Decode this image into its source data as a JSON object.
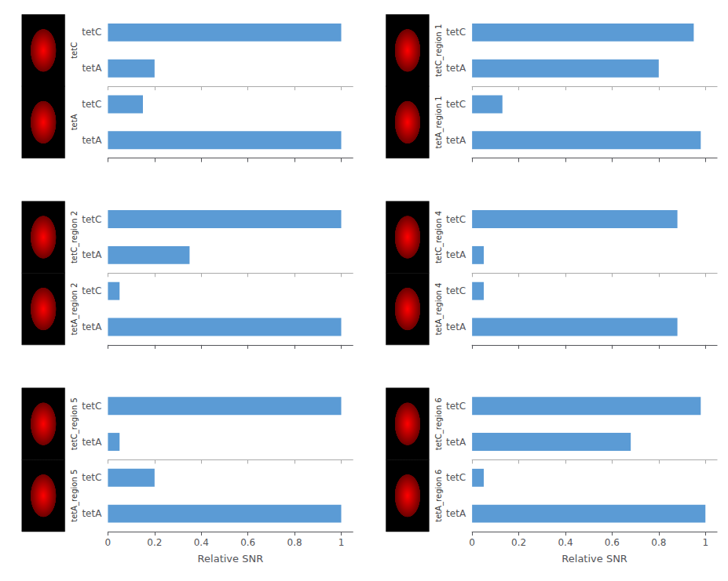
{
  "chart_data": [
    {
      "type": "bar",
      "orientation": "horizontal",
      "title": "tetC",
      "categories": [
        "tetA",
        "tetC"
      ],
      "values": [
        0.2,
        1.0
      ],
      "color": "#5B9BD5",
      "xlim": [
        0,
        1.05
      ],
      "xticks": [
        0,
        0.2,
        0.4,
        0.6,
        0.8,
        1
      ],
      "grid": false,
      "tick_labels": "y"
    },
    {
      "type": "bar",
      "orientation": "horizontal",
      "title": "tetA",
      "categories": [
        "tetA",
        "tetC"
      ],
      "values": [
        1.0,
        0.15
      ],
      "color": "#5B9BD5",
      "xlim": [
        0,
        1.05
      ],
      "xticks": [
        0,
        0.2,
        0.4,
        0.6,
        0.8,
        1
      ],
      "grid": false,
      "tick_labels": "y"
    },
    {
      "type": "bar",
      "orientation": "horizontal",
      "title": "tetC_region 1",
      "categories": [
        "tetA",
        "tetC"
      ],
      "values": [
        0.8,
        0.95
      ],
      "color": "#5B9BD5",
      "xlim": [
        0,
        1.05
      ],
      "xticks": [
        0,
        0.2,
        0.4,
        0.6,
        0.8,
        1
      ],
      "grid": false,
      "tick_labels": "y"
    },
    {
      "type": "bar",
      "orientation": "horizontal",
      "title": "tetA_region 1",
      "categories": [
        "tetA",
        "tetC"
      ],
      "values": [
        0.98,
        0.13
      ],
      "color": "#5B9BD5",
      "xlim": [
        0,
        1.05
      ],
      "xticks": [
        0,
        0.2,
        0.4,
        0.6,
        0.8,
        1
      ],
      "grid": false,
      "tick_labels": "y"
    },
    {
      "type": "bar",
      "orientation": "horizontal",
      "title": "tetC_region 2",
      "categories": [
        "tetA",
        "tetC"
      ],
      "values": [
        0.35,
        1.0
      ],
      "color": "#5B9BD5",
      "xlim": [
        0,
        1.05
      ],
      "xticks": [
        0,
        0.2,
        0.4,
        0.6,
        0.8,
        1
      ],
      "grid": false,
      "tick_labels": "y"
    },
    {
      "type": "bar",
      "orientation": "horizontal",
      "title": "tetA_region 2",
      "categories": [
        "tetA",
        "tetC"
      ],
      "values": [
        1.0,
        0.05
      ],
      "color": "#5B9BD5",
      "xlim": [
        0,
        1.05
      ],
      "xticks": [
        0,
        0.2,
        0.4,
        0.6,
        0.8,
        1
      ],
      "grid": false,
      "tick_labels": "y"
    },
    {
      "type": "bar",
      "orientation": "horizontal",
      "title": "tetC_region 4",
      "categories": [
        "tetA",
        "tetC"
      ],
      "values": [
        0.05,
        0.88
      ],
      "color": "#5B9BD5",
      "xlim": [
        0,
        1.05
      ],
      "xticks": [
        0,
        0.2,
        0.4,
        0.6,
        0.8,
        1
      ],
      "grid": false,
      "tick_labels": "y"
    },
    {
      "type": "bar",
      "orientation": "horizontal",
      "title": "tetA_region 4",
      "categories": [
        "tetA",
        "tetC"
      ],
      "values": [
        0.88,
        0.05
      ],
      "color": "#5B9BD5",
      "xlim": [
        0,
        1.05
      ],
      "xticks": [
        0,
        0.2,
        0.4,
        0.6,
        0.8,
        1
      ],
      "grid": false,
      "tick_labels": "y"
    },
    {
      "type": "bar",
      "orientation": "horizontal",
      "title": "tetC_region 5",
      "categories": [
        "tetA",
        "tetC"
      ],
      "values": [
        0.05,
        1.0
      ],
      "color": "#5B9BD5",
      "xlim": [
        0,
        1.05
      ],
      "xticks": [
        0,
        0.2,
        0.4,
        0.6,
        0.8,
        1
      ],
      "grid": false,
      "tick_labels": "y"
    },
    {
      "type": "bar",
      "orientation": "horizontal",
      "title": "tetA_region 5",
      "categories": [
        "tetA",
        "tetC"
      ],
      "values": [
        1.0,
        0.2
      ],
      "color": "#5B9BD5",
      "xlim": [
        0,
        1.05
      ],
      "xticks": [
        0,
        0.2,
        0.4,
        0.6,
        0.8,
        1
      ],
      "grid": false,
      "xlabel": "Relative SNR"
    },
    {
      "type": "bar",
      "orientation": "horizontal",
      "title": "tetC_region 6",
      "categories": [
        "tetA",
        "tetC"
      ],
      "values": [
        0.68,
        0.98
      ],
      "color": "#5B9BD5",
      "xlim": [
        0,
        1.05
      ],
      "xticks": [
        0,
        0.2,
        0.4,
        0.6,
        0.8,
        1
      ],
      "grid": false,
      "tick_labels": "y"
    },
    {
      "type": "bar",
      "orientation": "horizontal",
      "title": "tetA_region 6",
      "categories": [
        "tetA",
        "tetC"
      ],
      "values": [
        1.0,
        0.05
      ],
      "color": "#5B9BD5",
      "xlim": [
        0,
        1.05
      ],
      "xticks": [
        0,
        0.2,
        0.4,
        0.6,
        0.8,
        1
      ],
      "grid": false,
      "xlabel": "Relative SNR"
    }
  ]
}
